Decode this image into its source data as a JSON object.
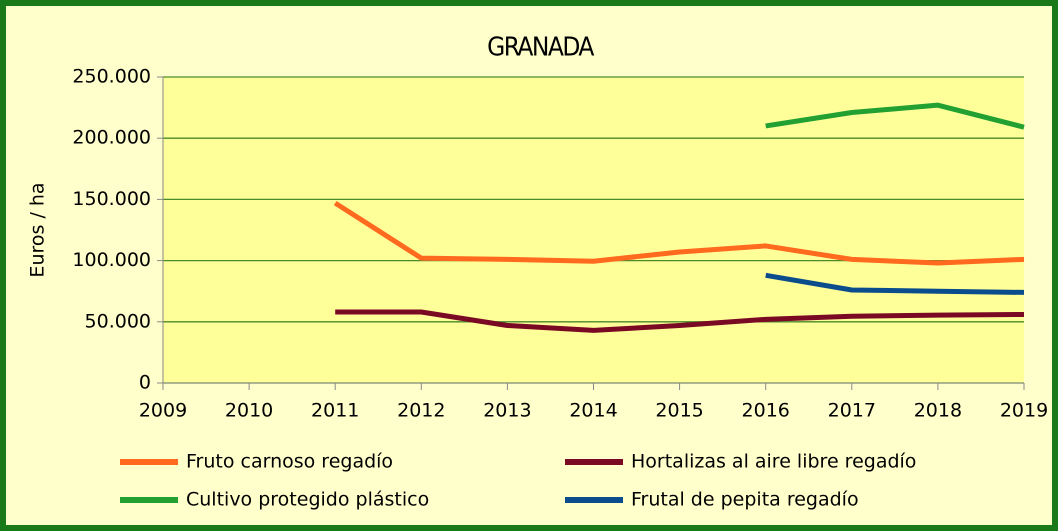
{
  "chart_data": {
    "type": "line",
    "title": "GRANADA",
    "y_label": "Euros / ha",
    "x": [
      2009,
      2010,
      2011,
      2012,
      2013,
      2014,
      2015,
      2016,
      2017,
      2018,
      2019
    ],
    "xlim": [
      2009,
      2019
    ],
    "xticks": [
      2009,
      2010,
      2011,
      2012,
      2013,
      2014,
      2015,
      2016,
      2017,
      2018,
      2019
    ],
    "ylim": [
      0,
      250000
    ],
    "yticks": [
      0,
      {
        "value": 50000,
        "label": "50.000"
      },
      {
        "value": 100000,
        "label": "100.000"
      },
      {
        "value": 150000,
        "label": "150.000"
      },
      {
        "value": 200000,
        "label": "200.000"
      },
      {
        "value": 250000,
        "label": "250.000"
      }
    ],
    "grid": true,
    "legend": "bottom",
    "series": [
      {
        "name": "Fruto carnoso regadío",
        "color": "#ff6a1f",
        "values": [
          null,
          null,
          147000,
          102000,
          101000,
          99500,
          107000,
          112000,
          101000,
          98000,
          101000
        ]
      },
      {
        "name": "Hortalizas al aire libre regadío",
        "color": "#7a0a24",
        "values": [
          null,
          null,
          58000,
          58000,
          47000,
          43000,
          47000,
          52000,
          54500,
          55500,
          56000
        ]
      },
      {
        "name": "Cultivo protegido plástico",
        "color": "#22a032",
        "values": [
          null,
          null,
          null,
          null,
          null,
          null,
          null,
          210000,
          221000,
          227000,
          209000
        ]
      },
      {
        "name": "Frutal de pepita regadío",
        "color": "#0b4c8c",
        "values": [
          null,
          null,
          null,
          null,
          null,
          null,
          null,
          88000,
          76000,
          75000,
          74000
        ]
      }
    ]
  }
}
